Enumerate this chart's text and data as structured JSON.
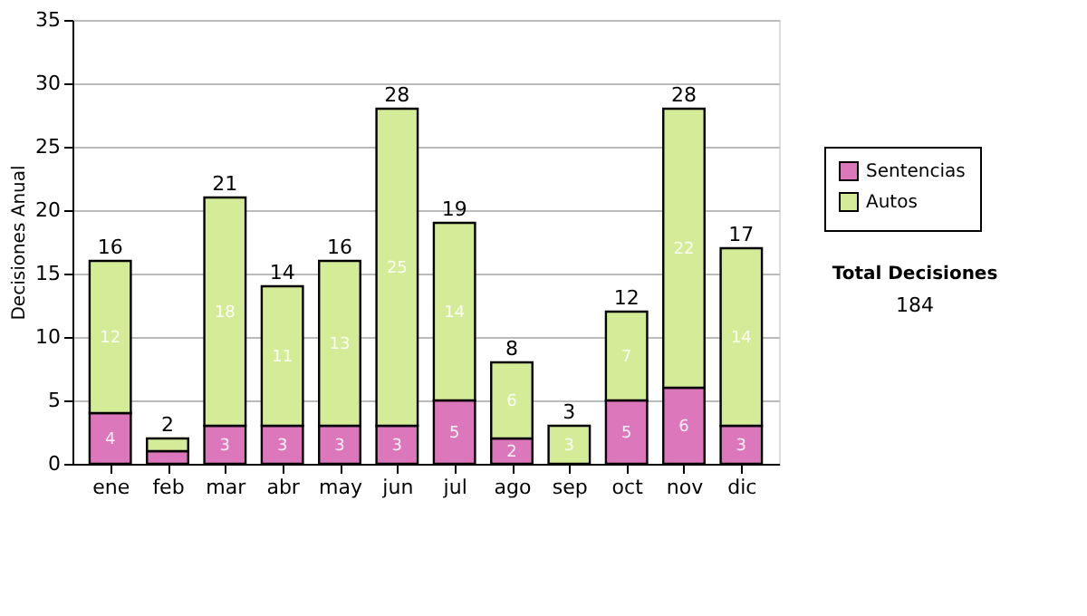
{
  "chart_data": {
    "type": "bar",
    "stacked": true,
    "ylabel": "Decisiones Anual",
    "categories": [
      "ene",
      "feb",
      "mar",
      "abr",
      "may",
      "jun",
      "jul",
      "ago",
      "sep",
      "oct",
      "nov",
      "dic"
    ],
    "series": [
      {
        "name": "Sentencias",
        "color": "#dd77bb",
        "values": [
          4,
          1,
          3,
          3,
          3,
          3,
          5,
          2,
          0,
          5,
          6,
          3
        ],
        "value_labels": [
          "4",
          null,
          "3",
          "3",
          "3",
          "3",
          "5",
          "2",
          null,
          "5",
          "6",
          "3"
        ]
      },
      {
        "name": "Autos",
        "color": "#d4ec98",
        "values": [
          12,
          1,
          18,
          11,
          13,
          25,
          14,
          6,
          3,
          7,
          22,
          14
        ],
        "value_labels": [
          "12",
          null,
          "18",
          "11",
          "13",
          "25",
          "14",
          "6",
          "3",
          "7",
          "22",
          "14"
        ]
      }
    ],
    "totals": [
      "16",
      "2",
      "21",
      "14",
      "16",
      "28",
      "19",
      "8",
      "3",
      "12",
      "28",
      "17"
    ],
    "ylim": [
      0,
      35
    ],
    "yticks": [
      0,
      5,
      10,
      15,
      20,
      25,
      30,
      35
    ],
    "grid": "y",
    "legend": "right",
    "annotations": [
      "Total Decisiones",
      "184"
    ]
  }
}
